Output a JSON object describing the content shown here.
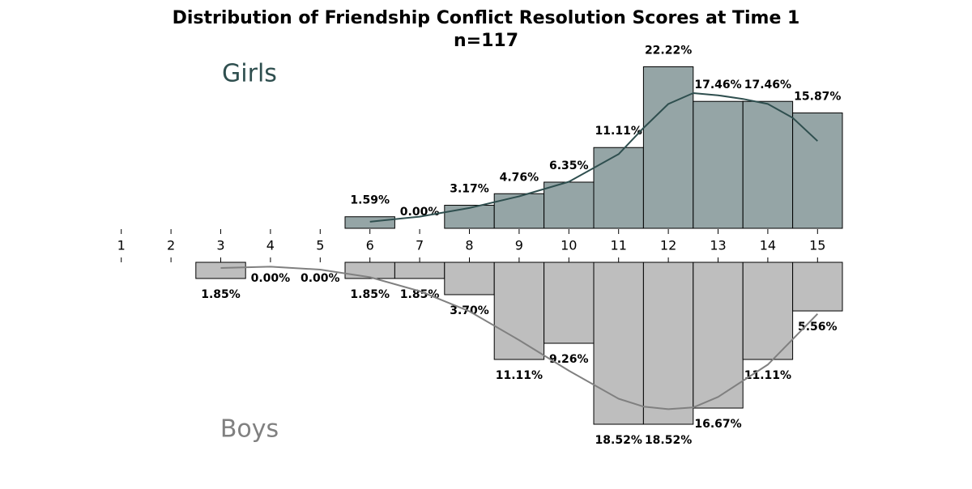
{
  "chart_data": {
    "type": "bar",
    "title": "Distribution of Friendship Conflict Resolution Scores at Time 1",
    "subtitle": "n=117",
    "xlim": [
      0.5,
      15.5
    ],
    "xticks": [
      1,
      2,
      3,
      4,
      5,
      6,
      7,
      8,
      9,
      10,
      11,
      12,
      13,
      14,
      15
    ],
    "series": [
      {
        "name": "Girls",
        "color": "#95a5a6",
        "line_color": "#2f4f4f",
        "ylim": [
          0,
          24.5
        ],
        "x": [
          6,
          7,
          8,
          9,
          10,
          11,
          12,
          13,
          14,
          15
        ],
        "values": [
          1.59,
          0.0,
          3.17,
          4.76,
          6.35,
          11.11,
          22.22,
          17.46,
          17.46,
          15.87
        ],
        "value_labels": [
          "1.59%",
          "0.00%",
          "3.17%",
          "4.76%",
          "6.35%",
          "11.11%",
          "22.22%",
          "17.46%",
          "17.46%",
          "15.87%"
        ],
        "kde_x": [
          6,
          7,
          8,
          9,
          10,
          11,
          11.5,
          12,
          12.5,
          13,
          13.5,
          14,
          14.5,
          15
        ],
        "kde": [
          0.9,
          1.6,
          2.8,
          4.4,
          6.4,
          10.2,
          13.8,
          17.1,
          18.6,
          18.3,
          17.8,
          17.1,
          15.2,
          12.0
        ]
      },
      {
        "name": "Boys",
        "color": "#bebebe",
        "line_color": "#808080",
        "ylim": [
          0,
          20
        ],
        "x": [
          3,
          4,
          5,
          6,
          7,
          8,
          9,
          10,
          11,
          12,
          13,
          14,
          15
        ],
        "values": [
          1.85,
          0.0,
          0.0,
          1.85,
          1.85,
          3.7,
          11.11,
          9.26,
          18.52,
          18.52,
          16.67,
          11.11,
          5.56
        ],
        "value_labels": [
          "1.85%",
          "0.00%",
          "0.00%",
          "1.85%",
          "1.85%",
          "3.70%",
          "11.11%",
          "9.26%",
          "18.52%",
          "18.52%",
          "16.67%",
          "11.11%",
          "5.56%"
        ],
        "kde_x": [
          3,
          4,
          5,
          6,
          7,
          8,
          9,
          10,
          11,
          11.5,
          12,
          12.5,
          13,
          14,
          15
        ],
        "kde": [
          0.65,
          0.5,
          0.83,
          1.7,
          3.3,
          5.6,
          8.9,
          12.4,
          15.6,
          16.5,
          16.8,
          16.6,
          15.4,
          11.7,
          5.9
        ]
      }
    ]
  }
}
